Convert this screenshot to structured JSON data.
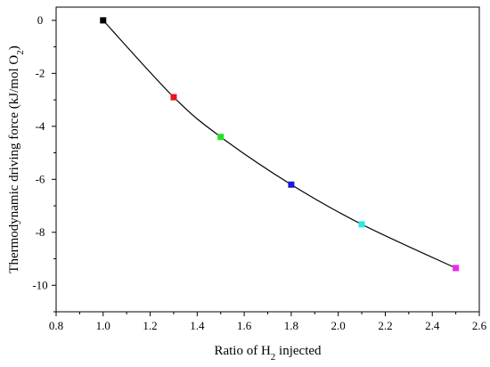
{
  "chart_data": {
    "type": "line",
    "title": "",
    "xlabel": "Ratio of H₂ injected",
    "ylabel": "Thermodynamic driving force (kJ/mol O₂)",
    "xlim": [
      0.8,
      2.6
    ],
    "ylim": [
      -11,
      0.5
    ],
    "x_ticks": [
      0.8,
      1.0,
      1.2,
      1.4,
      1.6,
      1.8,
      2.0,
      2.2,
      2.4,
      2.6
    ],
    "x_tick_labels": [
      "0.8",
      "1.0",
      "1.2",
      "1.4",
      "1.6",
      "1.8",
      "2.0",
      "2.2",
      "2.4",
      "2.6"
    ],
    "y_ticks": [
      0,
      -2,
      -4,
      -6,
      -8,
      -10
    ],
    "y_tick_labels": [
      "0",
      "-2",
      "-4",
      "-6",
      "-8",
      "-10"
    ],
    "grid": false,
    "legend": "none",
    "series": [
      {
        "x": [
          1.0,
          1.3,
          1.5,
          1.8,
          2.1,
          2.5
        ],
        "y": [
          0,
          -2.9,
          -4.4,
          -6.2,
          -7.7,
          -9.35
        ],
        "marker_colors": [
          "#000000",
          "#e8141b",
          "#22e02a",
          "#1a1ad6",
          "#28e8e8",
          "#ee28ee"
        ],
        "line_color": "#000000"
      }
    ]
  }
}
